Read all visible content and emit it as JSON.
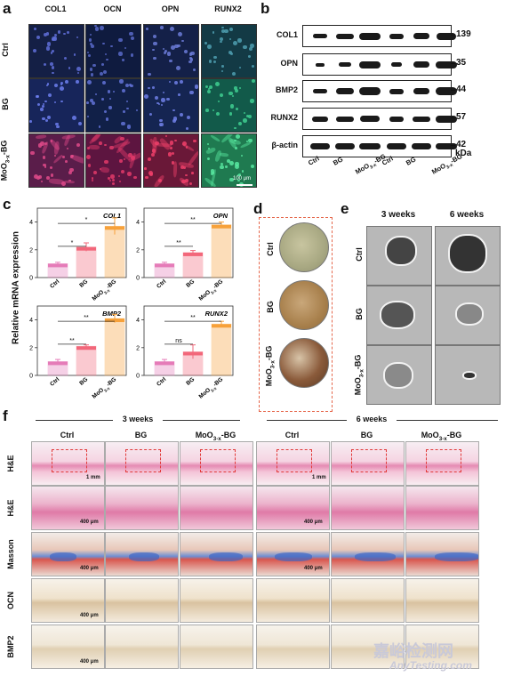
{
  "panels": {
    "a": "a",
    "b": "b",
    "c": "c",
    "d": "d",
    "e": "e",
    "f": "f"
  },
  "panel_a": {
    "columns": [
      "COL1",
      "OCN",
      "OPN",
      "RUNX2"
    ],
    "rows": [
      "Ctrl",
      "BG",
      "MoO3-x-BG"
    ],
    "scale_bar": "100 μm"
  },
  "panel_b": {
    "proteins": [
      {
        "name": "COL1",
        "kda": "139"
      },
      {
        "name": "OPN",
        "kda": "35"
      },
      {
        "name": "BMP2",
        "kda": "44"
      },
      {
        "name": "RUNX2",
        "kda": "57"
      },
      {
        "name": "β-actin",
        "kda": "42"
      }
    ],
    "unit": "kDa",
    "lanes": [
      "Ctrl",
      "BG",
      "MoO3-x-BG",
      "Ctrl",
      "BG",
      "MoO3-x-BG"
    ]
  },
  "panel_c": {
    "ylabel": "Relative mRNA expression",
    "colors": {
      "ctrl": "#e57bb8",
      "bg": "#f2677a",
      "moo": "#f7a13a"
    }
  },
  "chart_data": [
    {
      "type": "bar",
      "title": "COL1",
      "categories": [
        "Ctrl",
        "BG",
        "MoO3-x-BG"
      ],
      "values": [
        1.0,
        2.2,
        3.7
      ],
      "errors": [
        0.1,
        0.3,
        0.6
      ],
      "ylim": [
        0,
        5
      ],
      "yticks": [
        "0",
        "2",
        "4"
      ],
      "significance": [
        {
          "from": 0,
          "to": 1,
          "label": "*"
        },
        {
          "from": 0,
          "to": 2,
          "label": "*"
        }
      ]
    },
    {
      "type": "bar",
      "title": "OPN",
      "categories": [
        "Ctrl",
        "BG",
        "MoO3-x-BG"
      ],
      "values": [
        1.0,
        1.8,
        3.8
      ],
      "errors": [
        0.1,
        0.15,
        0.2
      ],
      "ylim": [
        0,
        5
      ],
      "yticks": [
        "0",
        "2",
        "4"
      ],
      "significance": [
        {
          "from": 0,
          "to": 1,
          "label": "**"
        },
        {
          "from": 0,
          "to": 2,
          "label": "**"
        }
      ]
    },
    {
      "type": "bar",
      "title": "BMP2",
      "categories": [
        "Ctrl",
        "BG",
        "MoO3-x-BG"
      ],
      "values": [
        1.0,
        2.1,
        4.1
      ],
      "errors": [
        0.15,
        0.1,
        0.3
      ],
      "ylim": [
        0,
        5
      ],
      "yticks": [
        "0",
        "2",
        "4"
      ],
      "significance": [
        {
          "from": 0,
          "to": 1,
          "label": "**"
        },
        {
          "from": 0,
          "to": 2,
          "label": "**"
        }
      ]
    },
    {
      "type": "bar",
      "title": "RUNX2",
      "categories": [
        "Ctrl",
        "BG",
        "MoO3-x-BG"
      ],
      "values": [
        1.0,
        1.7,
        3.7
      ],
      "errors": [
        0.15,
        0.5,
        0.2
      ],
      "ylim": [
        0,
        5
      ],
      "yticks": [
        "0",
        "2",
        "4"
      ],
      "significance": [
        {
          "from": 0,
          "to": 1,
          "label": "ns"
        },
        {
          "from": 0,
          "to": 2,
          "label": "**"
        }
      ]
    }
  ],
  "panel_d": {
    "rows": [
      "Ctrl",
      "BG",
      "MoO3-x-BG"
    ]
  },
  "panel_e": {
    "columns": [
      "3 weeks",
      "6 weeks"
    ],
    "rows": [
      "Ctrl",
      "BG",
      "MoO3-x-BG"
    ]
  },
  "panel_f": {
    "timepoints": [
      "3 weeks",
      "6 weeks"
    ],
    "groups": [
      "Ctrl",
      "BG",
      "MoO3-x-BG",
      "Ctrl",
      "BG",
      "MoO3-x-BG"
    ],
    "rows": [
      "H&E",
      "H&E",
      "Masson",
      "OCN",
      "BMP2"
    ],
    "scale_1mm": "1 mm",
    "scale_400": "400 μm"
  },
  "watermark": {
    "cn": "嘉峪检测网",
    "en": "AnyTesting.com"
  }
}
